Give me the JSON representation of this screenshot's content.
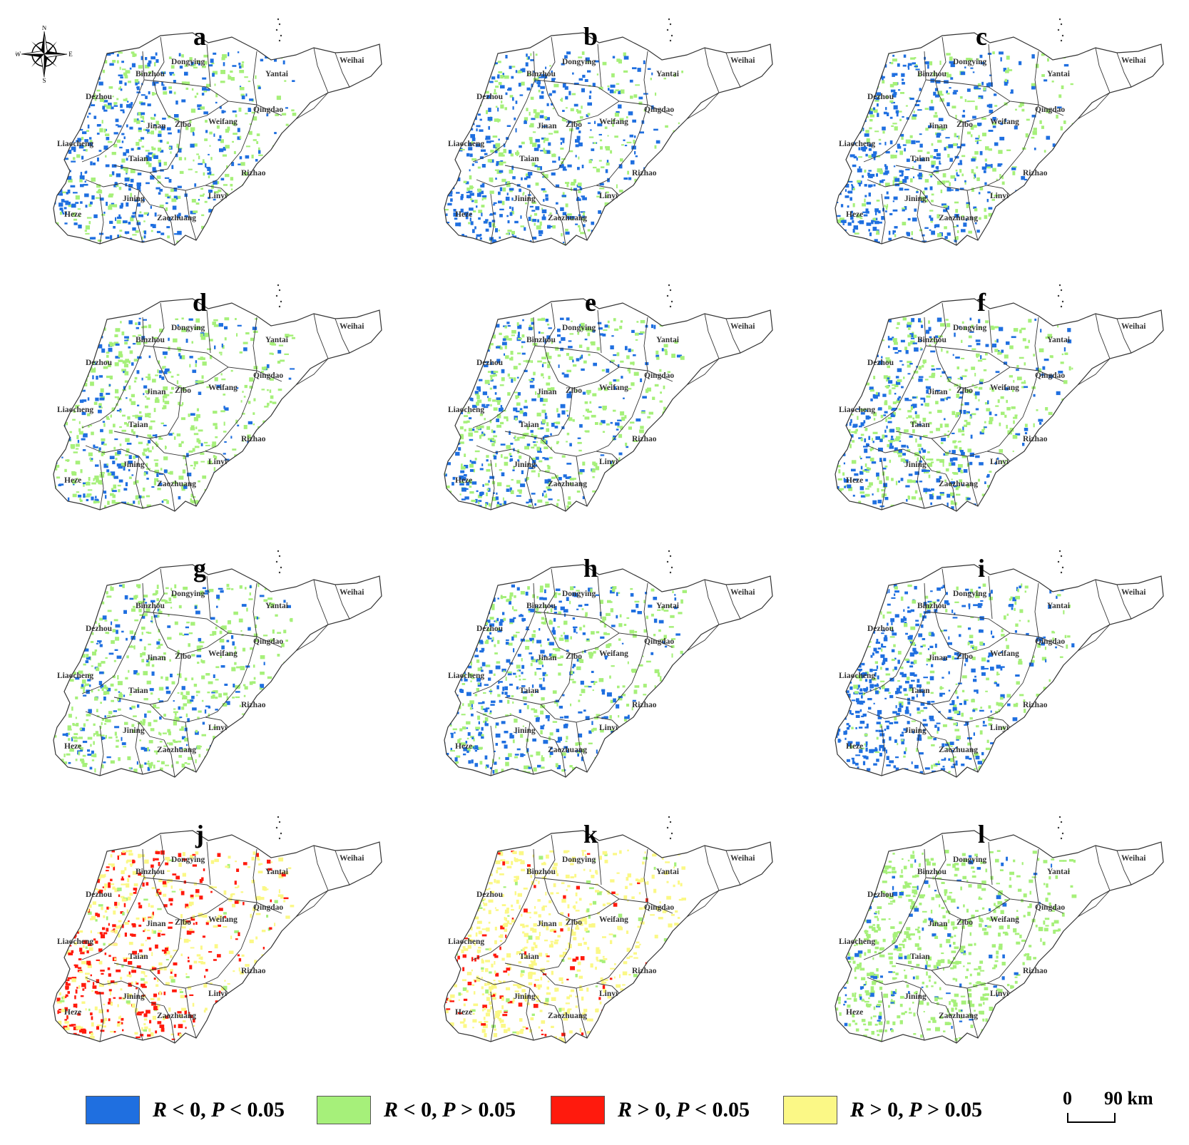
{
  "panels": [
    {
      "label": "a",
      "scheme": "neg",
      "blue": 0.55,
      "coverage": 0.62
    },
    {
      "label": "b",
      "scheme": "neg",
      "blue": 0.6,
      "coverage": 0.62
    },
    {
      "label": "c",
      "scheme": "neg",
      "blue": 0.65,
      "coverage": 0.62
    },
    {
      "label": "d",
      "scheme": "neg",
      "blue": 0.3,
      "coverage": 0.62
    },
    {
      "label": "e",
      "scheme": "neg",
      "blue": 0.45,
      "coverage": 0.62
    },
    {
      "label": "f",
      "scheme": "neg",
      "blue": 0.5,
      "coverage": 0.62
    },
    {
      "label": "g",
      "scheme": "neg",
      "blue": 0.3,
      "coverage": 0.62
    },
    {
      "label": "h",
      "scheme": "neg",
      "blue": 0.55,
      "coverage": 0.62
    },
    {
      "label": "i",
      "scheme": "neg",
      "blue": 0.75,
      "coverage": 0.62
    },
    {
      "label": "j",
      "scheme": "pos",
      "red": 0.45,
      "coverage": 0.62
    },
    {
      "label": "k",
      "scheme": "pos",
      "red": 0.12,
      "coverage": 0.62
    },
    {
      "label": "l",
      "scheme": "neg",
      "blue": 0.18,
      "coverage": 0.62
    }
  ],
  "cities": [
    "Binzhou",
    "Dongying",
    "Yantai",
    "Weihai",
    "Dezhou",
    "Qingdao",
    "Jinan",
    "Zibo",
    "Weifang",
    "Liaocheng",
    "Taian",
    "Rizhao",
    "Jining",
    "Linyi",
    "Heze",
    "Zaozhuang"
  ],
  "compass": {
    "n": "N",
    "s": "S",
    "e": "E",
    "w": "W"
  },
  "legend": [
    {
      "color": "#1f6fe0",
      "r": "R",
      "r_op": "< 0,",
      "p": "P",
      "p_op": "< 0.05"
    },
    {
      "color": "#a6f07a",
      "r": "R",
      "r_op": "< 0,",
      "p": "P",
      "p_op": "> 0.05"
    },
    {
      "color": "#ff1a0d",
      "r": "R",
      "r_op": "> 0,",
      "p": "P",
      "p_op": "< 0.05"
    },
    {
      "color": "#fbf886",
      "r": "R",
      "r_op": "> 0,",
      "p": "P",
      "p_op": "> 0.05"
    }
  ],
  "scale": {
    "start": "0",
    "end": "90 km"
  },
  "colors": {
    "blue": "#1f6fe0",
    "green": "#a6f07a",
    "red": "#ff1a0d",
    "yellow": "#fbf886",
    "boundary": "#333333"
  }
}
